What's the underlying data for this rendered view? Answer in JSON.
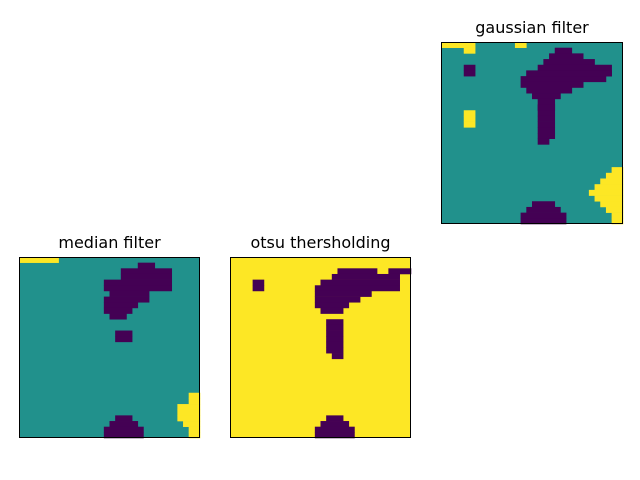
{
  "figure": {
    "colors": {
      "low": "#440154",
      "mid": "#21918c",
      "high": "#fde725",
      "frame": "#000000"
    }
  },
  "chart_data": [
    {
      "type": "heatmap",
      "title": "gaussian filter",
      "grid_size": [
        32,
        32
      ],
      "colormap": "viridis",
      "value_levels": {
        "0": "low",
        "1": "mid",
        "2": "high"
      },
      "background_value": 1,
      "runs": [
        [
          0,
          0,
          3,
          2
        ],
        [
          0,
          4,
          5,
          2
        ],
        [
          0,
          13,
          14,
          2
        ],
        [
          1,
          4,
          5,
          2
        ],
        [
          1,
          20,
          22,
          0
        ],
        [
          2,
          19,
          24,
          0
        ],
        [
          3,
          18,
          26,
          0
        ],
        [
          4,
          17,
          29,
          0
        ],
        [
          5,
          15,
          29,
          0
        ],
        [
          4,
          4,
          5,
          0
        ],
        [
          5,
          4,
          5,
          0
        ],
        [
          5,
          15,
          29,
          0
        ],
        [
          6,
          14,
          28,
          0
        ],
        [
          7,
          14,
          24,
          0
        ],
        [
          8,
          15,
          22,
          0
        ],
        [
          9,
          16,
          20,
          0
        ],
        [
          10,
          17,
          19,
          0
        ],
        [
          11,
          17,
          19,
          0
        ],
        [
          12,
          4,
          5,
          2
        ],
        [
          13,
          4,
          5,
          2
        ],
        [
          14,
          4,
          5,
          2
        ],
        [
          11,
          17,
          19,
          0
        ],
        [
          12,
          17,
          19,
          0
        ],
        [
          13,
          17,
          19,
          0
        ],
        [
          14,
          17,
          19,
          0
        ],
        [
          15,
          17,
          19,
          0
        ],
        [
          16,
          17,
          19,
          0
        ],
        [
          17,
          17,
          18,
          0
        ],
        [
          22,
          30,
          31,
          2
        ],
        [
          23,
          29,
          31,
          2
        ],
        [
          24,
          28,
          31,
          2
        ],
        [
          25,
          27,
          31,
          2
        ],
        [
          26,
          26,
          31,
          2
        ],
        [
          27,
          27,
          31,
          2
        ],
        [
          28,
          28,
          31,
          2
        ],
        [
          29,
          29,
          31,
          2
        ],
        [
          30,
          30,
          31,
          2
        ],
        [
          31,
          30,
          31,
          2
        ],
        [
          28,
          16,
          19,
          0
        ],
        [
          29,
          15,
          20,
          0
        ],
        [
          30,
          14,
          21,
          0
        ],
        [
          31,
          14,
          21,
          0
        ]
      ]
    },
    {
      "type": "heatmap",
      "title": "median filter",
      "grid_size": [
        32,
        32
      ],
      "colormap": "viridis",
      "value_levels": {
        "0": "low",
        "1": "mid",
        "2": "high"
      },
      "background_value": 1,
      "runs": [
        [
          0,
          0,
          6,
          2
        ],
        [
          1,
          21,
          23,
          0
        ],
        [
          2,
          18,
          26,
          0
        ],
        [
          3,
          18,
          26,
          0
        ],
        [
          4,
          15,
          26,
          0
        ],
        [
          5,
          15,
          26,
          0
        ],
        [
          6,
          16,
          22,
          0
        ],
        [
          7,
          15,
          22,
          0
        ],
        [
          8,
          15,
          20,
          0
        ],
        [
          9,
          15,
          19,
          0
        ],
        [
          10,
          16,
          18,
          0
        ],
        [
          13,
          17,
          19,
          0
        ],
        [
          14,
          17,
          19,
          0
        ],
        [
          24,
          30,
          31,
          2
        ],
        [
          25,
          30,
          31,
          2
        ],
        [
          26,
          28,
          31,
          2
        ],
        [
          27,
          28,
          31,
          2
        ],
        [
          28,
          28,
          31,
          2
        ],
        [
          29,
          29,
          31,
          2
        ],
        [
          30,
          30,
          31,
          2
        ],
        [
          31,
          30,
          31,
          2
        ],
        [
          28,
          17,
          19,
          0
        ],
        [
          29,
          16,
          20,
          0
        ],
        [
          30,
          15,
          21,
          0
        ],
        [
          31,
          15,
          21,
          0
        ]
      ]
    },
    {
      "type": "heatmap",
      "title": "otsu thersholding",
      "grid_size": [
        32,
        32
      ],
      "colormap": "viridis",
      "value_levels": {
        "0": "low",
        "1": "high"
      },
      "background_value": 1,
      "runs": [
        [
          2,
          19,
          25,
          0
        ],
        [
          2,
          28,
          31,
          0
        ],
        [
          3,
          18,
          29,
          0
        ],
        [
          4,
          16,
          29,
          0
        ],
        [
          5,
          15,
          29,
          0
        ],
        [
          6,
          15,
          24,
          0
        ],
        [
          7,
          15,
          22,
          0
        ],
        [
          8,
          15,
          20,
          0
        ],
        [
          9,
          16,
          19,
          0
        ],
        [
          4,
          4,
          5,
          0
        ],
        [
          5,
          4,
          5,
          0
        ],
        [
          11,
          17,
          19,
          0
        ],
        [
          12,
          17,
          19,
          0
        ],
        [
          13,
          17,
          19,
          0
        ],
        [
          14,
          17,
          19,
          0
        ],
        [
          15,
          17,
          19,
          0
        ],
        [
          16,
          17,
          19,
          0
        ],
        [
          17,
          18,
          19,
          0
        ],
        [
          28,
          17,
          19,
          0
        ],
        [
          29,
          16,
          20,
          0
        ],
        [
          30,
          15,
          21,
          0
        ],
        [
          31,
          15,
          21,
          0
        ]
      ]
    }
  ]
}
